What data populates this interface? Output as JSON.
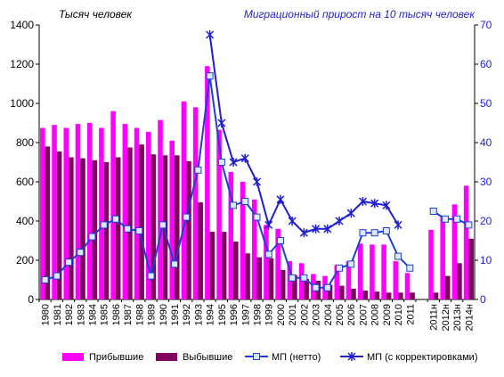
{
  "chart_data": {
    "type": "bar",
    "title": "",
    "ylabel_left": "Тысяч человек",
    "ylabel_right": "Миграционный прирост на 10 тысяч человек",
    "xlabel": "",
    "ylim_left": [
      0,
      1400
    ],
    "yticks_left": [
      0,
      200,
      400,
      600,
      800,
      1000,
      1200,
      1400
    ],
    "ylim_right": [
      0,
      70
    ],
    "yticks_right": [
      0,
      10,
      20,
      30,
      40,
      50,
      60,
      70
    ],
    "grid": false,
    "legend_position": "bottom",
    "categories": [
      "1980",
      "1981",
      "1982",
      "1983",
      "1984",
      "1985",
      "1986",
      "1987",
      "1988",
      "1989",
      "1990",
      "1991",
      "1992",
      "1993",
      "1994",
      "1995",
      "1996",
      "1997",
      "1998",
      "1999",
      "2000",
      "2001",
      "2002",
      "2003",
      "2004",
      "2005",
      "2006",
      "2007",
      "2008",
      "2009",
      "2010",
      "2011",
      "",
      "2011н",
      "2012н",
      "2013н",
      "2014н"
    ],
    "series": [
      {
        "name": "Прибывшие",
        "kind": "bar",
        "axis": "left",
        "color": "#ff00ff",
        "values": [
          875,
          890,
          875,
          895,
          900,
          875,
          960,
          895,
          875,
          855,
          915,
          810,
          1010,
          980,
          1190,
          865,
          650,
          600,
          510,
          380,
          360,
          195,
          185,
          130,
          120,
          175,
          195,
          285,
          280,
          280,
          195,
          135,
          null,
          355,
          420,
          485,
          580
        ]
      },
      {
        "name": "Выбывшие",
        "kind": "bar",
        "axis": "left",
        "color": "#800060",
        "values": [
          780,
          755,
          725,
          720,
          710,
          700,
          725,
          775,
          790,
          740,
          735,
          735,
          705,
          495,
          345,
          345,
          295,
          235,
          215,
          210,
          150,
          125,
          105,
          95,
          75,
          70,
          55,
          45,
          40,
          35,
          35,
          35,
          null,
          35,
          120,
          185,
          310
        ]
      },
      {
        "name": "МП  (нетто)",
        "kind": "line",
        "axis": "right",
        "color": "#1f3fcf",
        "marker": "square",
        "values": [
          5,
          6,
          9.5,
          12,
          16,
          19,
          20.5,
          18,
          17.5,
          6,
          19,
          9,
          21,
          33,
          57,
          35,
          24,
          25,
          21,
          11.5,
          15,
          5.5,
          5.5,
          3,
          3,
          8,
          9,
          17,
          17,
          17.5,
          11,
          8,
          null,
          22.5,
          20.5,
          20.5,
          19
        ]
      },
      {
        "name": "МП  (с корректировками)",
        "kind": "line",
        "axis": "right",
        "color": "#1f1fcf",
        "marker": "star",
        "values": [
          null,
          null,
          null,
          null,
          null,
          null,
          null,
          null,
          null,
          null,
          null,
          null,
          null,
          null,
          67.5,
          45,
          35,
          36,
          30,
          19,
          25.5,
          20,
          17,
          18,
          18,
          20,
          22,
          25,
          24.5,
          24,
          19,
          null,
          null,
          null,
          null,
          null,
          null
        ]
      }
    ]
  }
}
